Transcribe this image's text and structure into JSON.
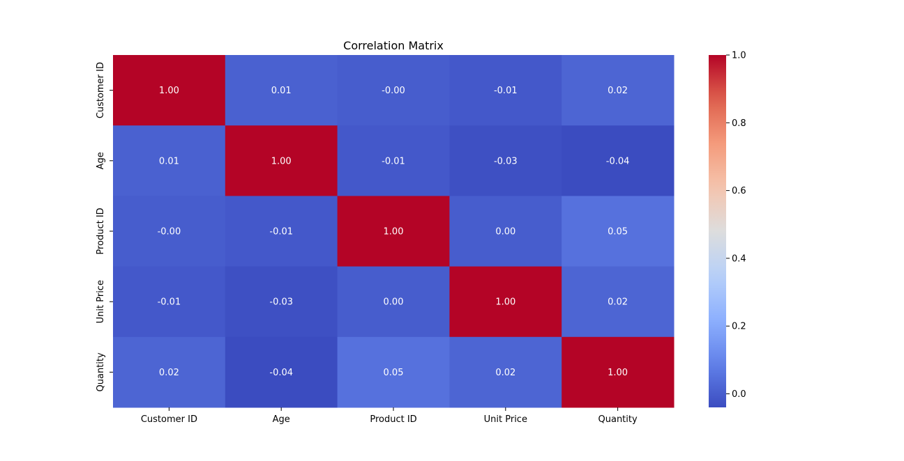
{
  "chart_data": {
    "type": "heatmap",
    "title": "Correlation Matrix",
    "xlabel": "",
    "ylabel": "",
    "row_labels": [
      "Customer ID",
      "Age",
      "Product ID",
      "Unit Price",
      "Quantity"
    ],
    "col_labels": [
      "Customer ID",
      "Age",
      "Product ID",
      "Unit Price",
      "Quantity"
    ],
    "values": [
      [
        1.0,
        0.01,
        -0.0,
        -0.01,
        0.02
      ],
      [
        0.01,
        1.0,
        -0.01,
        -0.03,
        -0.04
      ],
      [
        -0.0,
        -0.01,
        1.0,
        0.0,
        0.05
      ],
      [
        -0.01,
        -0.03,
        0.0,
        1.0,
        0.02
      ],
      [
        0.02,
        -0.04,
        0.05,
        0.02,
        1.0
      ]
    ],
    "annotations": [
      [
        "1.00",
        "0.01",
        "-0.00",
        "-0.01",
        "0.02"
      ],
      [
        "0.01",
        "1.00",
        "-0.01",
        "-0.03",
        "-0.04"
      ],
      [
        "-0.00",
        "-0.01",
        "1.00",
        "0.00",
        "0.05"
      ],
      [
        "-0.01",
        "-0.03",
        "0.00",
        "1.00",
        "0.02"
      ],
      [
        "0.02",
        "-0.04",
        "0.05",
        "0.02",
        "1.00"
      ]
    ],
    "colormap": "coolwarm",
    "colorbar": {
      "min": -0.04,
      "max": 1.0,
      "ticks": [
        0.0,
        0.2,
        0.4,
        0.6,
        0.8,
        1.0
      ],
      "tick_labels": [
        "0.0",
        "0.2",
        "0.4",
        "0.6",
        "0.8",
        "1.0"
      ]
    },
    "grid": false,
    "legend": "colorbar-right"
  }
}
